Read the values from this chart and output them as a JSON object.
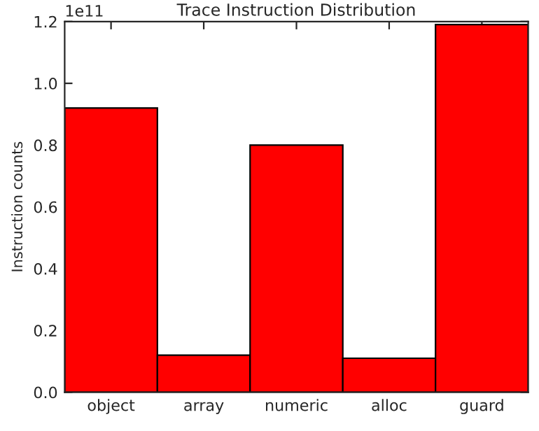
{
  "chart_data": {
    "type": "bar",
    "title": "Trace Instruction Distribution",
    "ylabel": "Instruction counts",
    "categories": [
      "object",
      "array",
      "numeric",
      "alloc",
      "guard"
    ],
    "values": [
      0.92,
      0.12,
      0.8,
      0.11,
      1.19
    ],
    "color": "#ff0000",
    "ylim": [
      0.0,
      1.2
    ],
    "yticks": [
      {
        "value": 0.0,
        "label": "0.0"
      },
      {
        "value": 0.2,
        "label": "0.2"
      },
      {
        "value": 0.4,
        "label": "0.4"
      },
      {
        "value": 0.6,
        "label": "0.6"
      },
      {
        "value": 0.8,
        "label": "0.8"
      },
      {
        "value": 1.0,
        "label": "1.0"
      },
      {
        "value": 1.2,
        "label": "1.2"
      }
    ],
    "annotations": [
      "1e11"
    ],
    "grid": false
  }
}
